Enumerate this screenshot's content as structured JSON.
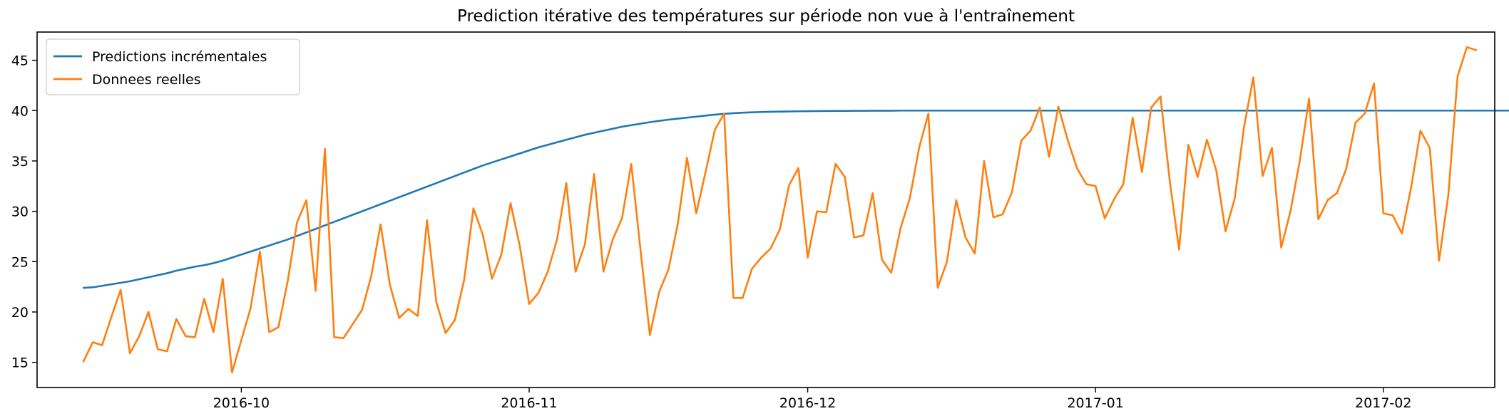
{
  "chart_data": {
    "type": "line",
    "title": "Prediction itérative des températures sur période non vue à l'entraînement",
    "xlabel": "",
    "ylabel": "",
    "x_start": "2016-09-14",
    "x_end": "2017-02-09",
    "xlim": [
      "2016-09-09",
      "2017-02-13"
    ],
    "ylim": [
      12.5,
      47.8
    ],
    "yticks": [
      15,
      20,
      25,
      30,
      35,
      40,
      45
    ],
    "xticks": [
      {
        "date": "2016-10-01",
        "label": "2016-10"
      },
      {
        "date": "2016-11-01",
        "label": "2016-11"
      },
      {
        "date": "2016-12-01",
        "label": "2016-12"
      },
      {
        "date": "2017-01-01",
        "label": "2017-01"
      },
      {
        "date": "2017-02-01",
        "label": "2017-02"
      }
    ],
    "grid": false,
    "legend_position": "upper-left",
    "series": [
      {
        "name": "Predictions incrémentales",
        "color": "#1f77b4",
        "values": [
          22.4,
          22.45,
          22.6,
          22.75,
          22.9,
          23.05,
          23.25,
          23.45,
          23.65,
          23.85,
          24.1,
          24.3,
          24.5,
          24.65,
          24.85,
          25.1,
          25.4,
          25.7,
          26.0,
          26.3,
          26.6,
          26.9,
          27.2,
          27.55,
          27.9,
          28.25,
          28.6,
          28.95,
          29.3,
          29.65,
          30.0,
          30.35,
          30.7,
          31.05,
          31.4,
          31.75,
          32.1,
          32.45,
          32.8,
          33.15,
          33.5,
          33.85,
          34.2,
          34.55,
          34.85,
          35.15,
          35.45,
          35.75,
          36.05,
          36.35,
          36.6,
          36.85,
          37.1,
          37.35,
          37.6,
          37.8,
          38.0,
          38.2,
          38.4,
          38.55,
          38.7,
          38.85,
          38.98,
          39.1,
          39.2,
          39.3,
          39.4,
          39.5,
          39.6,
          39.68,
          39.74,
          39.79,
          39.83,
          39.86,
          39.88,
          39.9,
          39.92,
          39.93,
          39.94,
          39.95,
          39.96,
          39.97,
          39.97,
          39.98,
          39.98,
          39.99,
          39.99,
          39.99,
          40.0,
          40.0,
          40.0,
          40.0,
          40.0,
          40.0,
          40.0,
          40.0,
          40.0,
          40.0,
          40.0,
          40.0,
          40.0,
          40.0,
          40.0,
          40.0,
          40.0,
          40.0,
          40.0,
          40.0,
          40.0,
          40.0,
          40.0,
          40.0,
          40.0,
          40.0,
          40.0,
          40.0,
          40.0,
          40.0,
          40.0,
          40.0,
          40.0,
          40.0,
          40.0,
          40.0,
          40.0,
          40.0,
          40.0,
          40.0,
          40.0,
          40.0,
          40.0,
          40.0,
          40.0,
          40.0,
          40.0,
          40.0,
          40.0,
          40.0,
          40.0,
          40.0,
          40.0,
          40.0,
          40.0,
          40.0,
          40.0,
          40.0,
          40.0,
          40.0,
          40.0,
          40.0,
          40.0,
          40.0,
          40.0,
          40.0,
          40.0,
          40.0,
          40.0,
          40.0
        ]
      },
      {
        "name": "Donnees reelles",
        "color": "#ff7f0e",
        "values": [
          15.1,
          17.0,
          16.7,
          19.5,
          22.2,
          15.9,
          17.6,
          20.0,
          16.3,
          16.1,
          19.3,
          17.6,
          17.5,
          21.3,
          18.0,
          23.3,
          14.0,
          17.2,
          20.4,
          26.0,
          18.0,
          18.5,
          23.1,
          28.9,
          31.1,
          22.1,
          36.2,
          17.5,
          17.4,
          18.8,
          20.2,
          23.6,
          28.7,
          22.7,
          19.4,
          20.3,
          19.6,
          29.1,
          21.0,
          17.9,
          19.2,
          23.2,
          30.3,
          27.7,
          23.3,
          25.7,
          30.8,
          26.5,
          20.8,
          21.9,
          24.0,
          27.2,
          32.8,
          24.0,
          26.7,
          33.7,
          24.0,
          27.2,
          29.3,
          34.7,
          26.1,
          17.7,
          22.0,
          24.2,
          28.7,
          35.3,
          29.8,
          33.9,
          38.1,
          39.7,
          21.4,
          21.4,
          24.3,
          25.4,
          26.3,
          28.2,
          32.6,
          34.3,
          25.4,
          30.0,
          29.9,
          34.7,
          33.4,
          27.4,
          27.6,
          31.8,
          25.2,
          23.9,
          28.3,
          31.3,
          36.3,
          39.7,
          22.4,
          25.0,
          31.1,
          27.4,
          25.8,
          35.0,
          29.4,
          29.7,
          31.9,
          37.0,
          38.0,
          40.3,
          35.4,
          40.4,
          37.1,
          34.3,
          32.7,
          32.5,
          29.3,
          31.2,
          32.7,
          39.3,
          33.9,
          40.3,
          41.4,
          33.0,
          26.2,
          36.6,
          33.4,
          37.1,
          34.1,
          28.0,
          31.3,
          38.4,
          43.3,
          33.5,
          36.3,
          26.4,
          30.0,
          35.0,
          41.2,
          29.2,
          31.1,
          31.8,
          34.2,
          38.8,
          39.7,
          42.7,
          29.8,
          29.6,
          27.8,
          32.4,
          38.0,
          36.3,
          25.1,
          31.6,
          43.4,
          46.3,
          46.0
        ]
      }
    ]
  }
}
